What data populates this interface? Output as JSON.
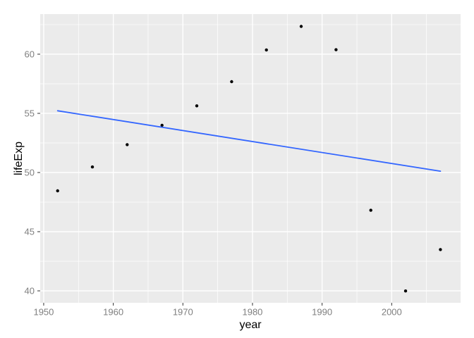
{
  "chart_data": {
    "type": "scatter",
    "title": "",
    "xlabel": "year",
    "ylabel": "lifeExp",
    "x": [
      1952,
      1957,
      1962,
      1967,
      1972,
      1977,
      1982,
      1987,
      1992,
      1997,
      2002,
      2007
    ],
    "y": [
      48.451,
      50.469,
      52.358,
      53.995,
      55.635,
      57.674,
      60.363,
      62.351,
      60.377,
      46.809,
      39.989,
      43.487
    ],
    "xlim": [
      1949.5,
      2009.9
    ],
    "ylim": [
      38.99,
      63.39
    ],
    "x_ticks": [
      1950,
      1960,
      1970,
      1980,
      1990,
      2000
    ],
    "y_ticks": [
      40,
      45,
      50,
      55,
      60
    ],
    "x_minor_ticks": [
      1955,
      1965,
      1975,
      1985,
      1995,
      2005
    ],
    "y_minor_ticks": [
      42.5,
      47.5,
      52.5,
      57.5,
      62.5
    ],
    "regression_line": {
      "method": "lm",
      "x": [
        1952,
        2007
      ],
      "y": [
        55.22,
        50.11
      ],
      "color": "#3366FF"
    },
    "grid": true,
    "legend_position": "none",
    "colors": {
      "figure_bg": "#FFFFFF",
      "panel_bg": "#EBEBEB",
      "grid_major": "#FFFFFF",
      "grid_minor": "#FFFFFF",
      "point": "#000000",
      "tick_mark": "#333333",
      "axis_text": "#7F7F7F",
      "axis_title": "#000000"
    }
  }
}
